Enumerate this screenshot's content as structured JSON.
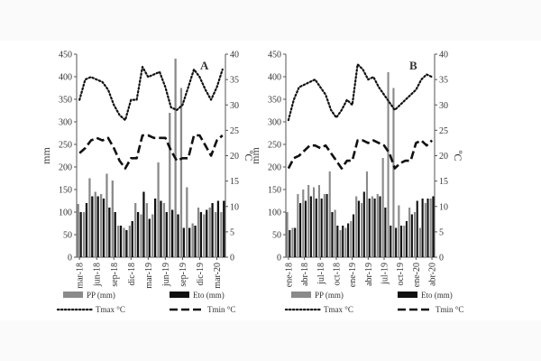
{
  "chart_data": [
    {
      "type": "bar",
      "panel_label": "A",
      "ylabel_left": "mm",
      "ylabel_right": "ºC",
      "ylim_left": [
        0,
        450
      ],
      "ylim_right": [
        0,
        40
      ],
      "left_ticks": [
        "0",
        "50",
        "100",
        "150",
        "200",
        "250",
        "300",
        "350",
        "400",
        "450"
      ],
      "right_ticks": [
        "0",
        "5",
        "10",
        "15",
        "20",
        "25",
        "30",
        "35",
        "40"
      ],
      "tick_labels": [
        "mar-18",
        "jun-18",
        "sep-18",
        "dic-18",
        "mar-19",
        "jun-19",
        "sep-19",
        "dic-19",
        "mar-20"
      ],
      "months": [
        "mar-18",
        "abr-18",
        "may-18",
        "jun-18",
        "jul-18",
        "ago-18",
        "sep-18",
        "oct-18",
        "nov-18",
        "dic-18",
        "ene-19",
        "feb-19",
        "mar-19",
        "abr-19",
        "may-19",
        "jun-19",
        "jul-19",
        "ago-19",
        "sep-19",
        "oct-19",
        "nov-19",
        "dic-19",
        "ene-20",
        "feb-20",
        "mar-20",
        "abr-20"
      ],
      "series": [
        {
          "name": "PP (mm)",
          "kind": "bar",
          "axis": "left",
          "color": "#8a8a8a",
          "values": [
            118,
            100,
            175,
            145,
            140,
            185,
            170,
            70,
            65,
            70,
            120,
            95,
            120,
            95,
            210,
            120,
            320,
            440,
            375,
            155,
            75,
            110,
            95,
            110,
            100,
            100
          ]
        },
        {
          "name": "Eto (mm)",
          "kind": "bar",
          "axis": "left",
          "color": "#111111",
          "values": [
            100,
            120,
            135,
            135,
            130,
            110,
            100,
            70,
            60,
            80,
            100,
            145,
            85,
            130,
            125,
            100,
            105,
            95,
            65,
            65,
            70,
            100,
            105,
            120,
            125,
            125
          ]
        },
        {
          "name": "Tmax °C",
          "kind": "line",
          "axis": "right",
          "style": "dotted",
          "values": [
            31,
            35,
            35.5,
            35,
            34.5,
            33,
            30,
            28,
            27,
            31,
            31,
            37.5,
            35.5,
            36,
            36.5,
            33.5,
            29.5,
            29,
            30,
            33.5,
            37,
            35.5,
            33,
            31,
            33.5,
            37
          ]
        },
        {
          "name": "Tmin °C",
          "kind": "line",
          "axis": "right",
          "style": "dashed",
          "values": [
            20.5,
            21.5,
            23,
            23.5,
            23,
            23.5,
            21.5,
            19,
            17.5,
            19.5,
            19.5,
            24,
            24,
            23.5,
            23.5,
            23.5,
            21,
            19,
            19.5,
            19.5,
            24,
            24,
            22,
            20,
            23,
            24
          ]
        }
      ],
      "legend": {
        "pp": "PP (mm)",
        "eto": "Eto (mm)",
        "tmax": "Tmax °C",
        "tmin": "Tmin °C"
      }
    },
    {
      "type": "bar",
      "panel_label": "B",
      "ylabel_left": "mm",
      "ylabel_right": "ºC",
      "ylim_left": [
        0,
        450
      ],
      "ylim_right": [
        0,
        40
      ],
      "left_ticks": [
        "0",
        "50",
        "100",
        "150",
        "200",
        "250",
        "300",
        "350",
        "400",
        "450"
      ],
      "right_ticks": [
        "0",
        "5",
        "10",
        "15",
        "20",
        "25",
        "30",
        "35",
        "40"
      ],
      "tick_labels": [
        "ene-18",
        "abr-18",
        "jul-18",
        "oct-18",
        "ene-19",
        "abr-19",
        "jul-19",
        "oct-19",
        "ene-20",
        "abr-20"
      ],
      "months": [
        "ene-18",
        "feb-18",
        "mar-18",
        "abr-18",
        "may-18",
        "jun-18",
        "jul-18",
        "ago-18",
        "sep-18",
        "oct-18",
        "nov-18",
        "dic-18",
        "ene-19",
        "feb-19",
        "mar-19",
        "abr-19",
        "may-19",
        "jun-19",
        "jul-19",
        "ago-19",
        "sep-19",
        "oct-19",
        "nov-19",
        "dic-19",
        "ene-20",
        "feb-20",
        "mar-20",
        "abr-20"
      ],
      "series": [
        {
          "name": "PP (mm)",
          "kind": "bar",
          "axis": "left",
          "color": "#8a8a8a",
          "values": [
            100,
            65,
            140,
            150,
            160,
            155,
            160,
            140,
            190,
            105,
            60,
            65,
            80,
            135,
            120,
            190,
            135,
            140,
            220,
            410,
            375,
            115,
            70,
            110,
            100,
            65,
            120,
            130
          ]
        },
        {
          "name": "Eto (mm)",
          "kind": "bar",
          "axis": "left",
          "color": "#111111",
          "values": [
            60,
            65,
            120,
            125,
            135,
            130,
            130,
            140,
            100,
            70,
            70,
            75,
            95,
            125,
            145,
            130,
            130,
            135,
            110,
            70,
            65,
            70,
            80,
            95,
            125,
            130,
            130,
            135
          ]
        },
        {
          "name": "Tmax °C",
          "kind": "line",
          "axis": "right",
          "style": "dotted",
          "values": [
            27,
            31,
            33.5,
            34,
            34.5,
            35,
            33.5,
            32,
            29,
            27.5,
            29,
            31,
            30,
            38,
            37,
            35,
            35.5,
            33.5,
            32,
            30.5,
            29,
            30,
            31,
            32,
            33,
            35,
            36,
            35.5
          ]
        },
        {
          "name": "Tmin °C",
          "kind": "line",
          "axis": "right",
          "style": "dashed",
          "values": [
            17.5,
            19.5,
            20,
            21,
            22,
            22,
            21.5,
            22,
            20.5,
            19,
            17.5,
            19,
            19,
            23,
            23,
            22.5,
            23,
            22.5,
            22,
            20.5,
            17.5,
            18.5,
            19,
            19,
            22.5,
            23,
            22,
            23
          ]
        }
      ],
      "legend": {
        "pp": "PP (mm)",
        "eto": "Eto (mm)",
        "tmax": "Tmax °C",
        "tmin": "Tmin °C"
      }
    }
  ]
}
